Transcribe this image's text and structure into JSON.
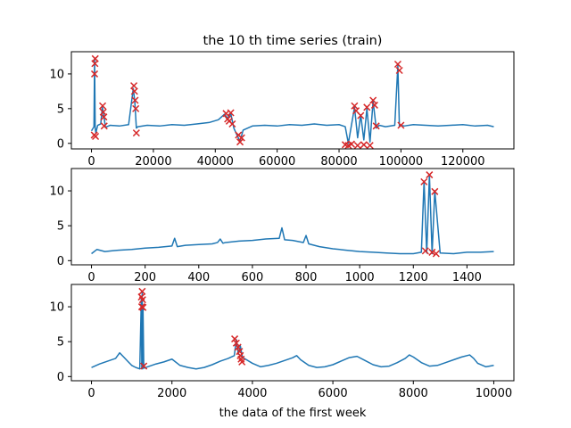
{
  "colors": {
    "line": "#1f77b4",
    "anomaly": "#d62728"
  },
  "chart_data": [
    {
      "type": "line",
      "title": "the 10 th time series (train)",
      "xlabel": "",
      "ylabel": "",
      "xlim": [
        -6500,
        136500
      ],
      "ylim": [
        -0.8,
        13.2
      ],
      "xticks": [
        0,
        20000,
        40000,
        60000,
        80000,
        100000,
        120000
      ],
      "yticks": [
        0,
        5,
        10
      ],
      "series": [
        {
          "x": [
            0,
            800,
            1000,
            1200,
            1400,
            2000,
            3000,
            3500,
            4000,
            4500,
            6000,
            9000,
            12000,
            13500,
            14000,
            14500,
            15000,
            18000,
            22000,
            26000,
            30000,
            34000,
            38000,
            41000,
            43000,
            44000,
            45000,
            46000,
            47000,
            48000,
            49000,
            52000,
            56000,
            60000,
            64000,
            68000,
            72000,
            76000,
            80000,
            82000,
            83000,
            85000,
            86000,
            87000,
            88000,
            89000,
            90000,
            91000,
            92000,
            93000,
            95000,
            98000,
            99000,
            99500,
            100000,
            101000,
            104000,
            108000,
            112000,
            116000,
            120000,
            124000,
            128000,
            130000
          ],
          "values": [
            1.8,
            2.4,
            12.2,
            2.2,
            1.5,
            2.6,
            2.8,
            5.2,
            4.0,
            2.3,
            2.6,
            2.5,
            2.7,
            7.9,
            6.0,
            2.2,
            2.4,
            2.6,
            2.5,
            2.7,
            2.6,
            2.8,
            3.0,
            3.4,
            4.2,
            3.6,
            4.3,
            2.2,
            1.2,
            0.3,
            1.9,
            2.5,
            2.6,
            2.5,
            2.7,
            2.6,
            2.8,
            2.6,
            2.7,
            2.4,
            0.0,
            5.2,
            0.8,
            4.1,
            0.5,
            5.0,
            0.2,
            6.1,
            2.2,
            2.6,
            2.4,
            2.6,
            11.2,
            2.4,
            2.6,
            2.5,
            2.7,
            2.6,
            2.5,
            2.6,
            2.7,
            2.5,
            2.6,
            2.4
          ]
        }
      ],
      "anomalies": {
        "x": [
          900,
          1000,
          1100,
          1200,
          1300,
          3600,
          3800,
          4000,
          4100,
          13700,
          13900,
          14100,
          14300,
          14500,
          43500,
          44000,
          44500,
          45000,
          45500,
          47500,
          48000,
          48500,
          82000,
          83000,
          84000,
          85000,
          85500,
          86000,
          87000,
          88000,
          89000,
          90000,
          91000,
          91500,
          92000,
          99000,
          99500,
          100000
        ],
        "y": [
          1.2,
          10.0,
          11.5,
          12.2,
          1.0,
          5.4,
          4.5,
          3.8,
          2.5,
          8.3,
          7.5,
          6.2,
          5.0,
          1.5,
          4.3,
          3.5,
          3.2,
          4.4,
          2.8,
          1.2,
          0.2,
          0.8,
          -0.2,
          -0.3,
          -0.1,
          5.4,
          4.7,
          -0.3,
          4.0,
          -0.2,
          5.2,
          -0.3,
          6.2,
          5.5,
          2.5,
          11.4,
          10.5,
          2.6
        ]
      }
    },
    {
      "type": "line",
      "title": "",
      "xlabel": "",
      "ylabel": "",
      "xlim": [
        -75,
        1575
      ],
      "ylim": [
        -0.6,
        13.2
      ],
      "xticks": [
        0,
        200,
        400,
        600,
        800,
        1000,
        1200,
        1400
      ],
      "yticks": [
        0,
        5,
        10
      ],
      "series": [
        {
          "x": [
            0,
            20,
            50,
            100,
            150,
            200,
            250,
            300,
            310,
            320,
            350,
            400,
            450,
            470,
            480,
            490,
            500,
            550,
            600,
            650,
            700,
            710,
            720,
            750,
            790,
            800,
            810,
            850,
            900,
            950,
            1000,
            1050,
            1100,
            1150,
            1200,
            1230,
            1240,
            1250,
            1260,
            1270,
            1280,
            1300,
            1350,
            1400,
            1450,
            1500
          ],
          "values": [
            1.0,
            1.6,
            1.3,
            1.5,
            1.6,
            1.8,
            1.9,
            2.1,
            3.2,
            2.0,
            2.2,
            2.3,
            2.4,
            2.6,
            3.1,
            2.5,
            2.6,
            2.8,
            2.9,
            3.1,
            3.2,
            4.7,
            3.0,
            2.9,
            2.6,
            3.6,
            2.4,
            2.0,
            1.7,
            1.5,
            1.3,
            1.2,
            1.1,
            1.0,
            1.0,
            1.2,
            11.4,
            1.1,
            12.3,
            1.0,
            10.0,
            1.1,
            1.0,
            1.2,
            1.2,
            1.3
          ]
        }
      ],
      "anomalies": {
        "x": [
          1240,
          1245,
          1260,
          1270,
          1280,
          1285
        ],
        "y": [
          11.3,
          1.4,
          12.3,
          1.2,
          9.9,
          1.0
        ]
      }
    },
    {
      "type": "line",
      "title": "",
      "xlabel": "the data of the first week",
      "ylabel": "",
      "xlim": [
        -500,
        10500
      ],
      "ylim": [
        -0.6,
        13.2
      ],
      "xticks": [
        0,
        2000,
        4000,
        6000,
        8000,
        10000
      ],
      "yticks": [
        0,
        5,
        10
      ],
      "series": [
        {
          "x": [
            0,
            200,
            400,
            600,
            700,
            800,
            900,
            1000,
            1100,
            1200,
            1240,
            1250,
            1260,
            1270,
            1280,
            1300,
            1400,
            1600,
            1800,
            2000,
            2200,
            2400,
            2600,
            2800,
            3000,
            3200,
            3400,
            3550,
            3600,
            3650,
            3700,
            3750,
            3800,
            4000,
            4200,
            4400,
            4600,
            4800,
            5000,
            5100,
            5200,
            5400,
            5600,
            5800,
            6000,
            6200,
            6400,
            6600,
            6800,
            7000,
            7200,
            7400,
            7600,
            7800,
            7900,
            8000,
            8200,
            8400,
            8600,
            8800,
            9000,
            9200,
            9400,
            9500,
            9600,
            9800,
            10000
          ],
          "values": [
            1.3,
            1.8,
            2.2,
            2.6,
            3.4,
            2.8,
            2.2,
            1.6,
            1.3,
            1.1,
            11.5,
            1.2,
            12.2,
            1.1,
            10.0,
            1.2,
            1.4,
            1.8,
            2.1,
            2.5,
            1.6,
            1.3,
            1.1,
            1.3,
            1.7,
            2.2,
            2.6,
            3.0,
            5.3,
            3.2,
            4.4,
            2.8,
            2.6,
            1.9,
            1.4,
            1.6,
            1.9,
            2.3,
            2.7,
            3.0,
            2.4,
            1.6,
            1.3,
            1.4,
            1.7,
            2.2,
            2.7,
            2.9,
            2.3,
            1.7,
            1.4,
            1.5,
            2.0,
            2.6,
            3.1,
            2.8,
            2.0,
            1.5,
            1.6,
            2.0,
            2.4,
            2.8,
            3.1,
            2.6,
            1.9,
            1.4,
            1.6
          ]
        }
      ],
      "anomalies": {
        "x": [
          1240,
          1250,
          1260,
          1270,
          1280,
          1300,
          3560,
          3600,
          3640,
          3680,
          3700,
          3720,
          3740
        ],
        "y": [
          11.4,
          10.0,
          12.2,
          11.0,
          9.9,
          1.5,
          5.4,
          4.8,
          4.2,
          3.6,
          3.0,
          2.5,
          2.1
        ]
      }
    }
  ]
}
